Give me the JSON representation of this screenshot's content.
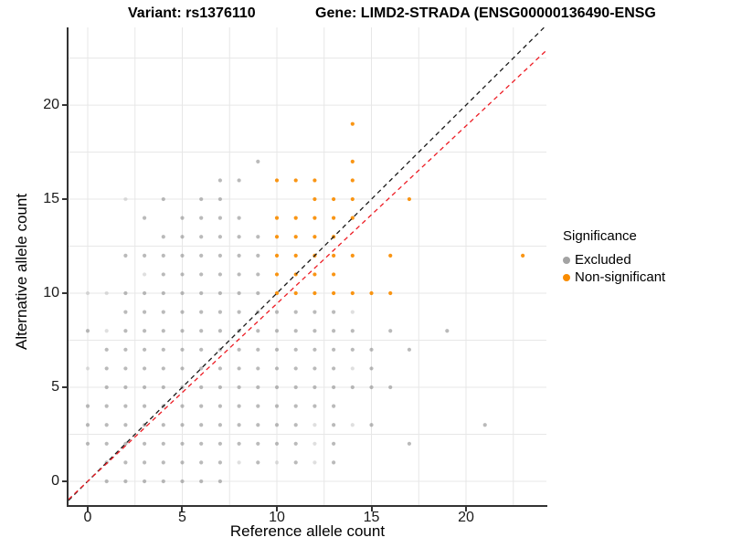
{
  "titles": {
    "variant": "Variant: rs1376110",
    "gene": "Gene: LIMD2-STRADA (ENSG00000136490-ENSG"
  },
  "legend": {
    "title": "Significance",
    "items": [
      {
        "label": "Excluded",
        "color": "#a3a3a3"
      },
      {
        "label": "Non-significant",
        "color": "#f98c00"
      }
    ]
  },
  "colors": {
    "grid": "#e7e7e7",
    "axis": "#333333",
    "gray_point": "#8c8c8c",
    "orange_point": "#f98c00",
    "identity_line": "#1a1a1a",
    "fit_line": "#ed1c24",
    "background": "#ffffff"
  },
  "chart_data": {
    "type": "scatter",
    "title": "Variant: rs1376110 | Gene: LIMD2-STRADA (ENSG00000136490-ENSG...)",
    "xlabel": "Reference allele count",
    "ylabel": "Alternative allele count",
    "xlim": [
      -1.014,
      24.25
    ],
    "ylim": [
      -1.262,
      24.13
    ],
    "x_ticks": [
      0,
      5,
      10,
      15,
      20
    ],
    "y_ticks": [
      0,
      5,
      10,
      15,
      20
    ],
    "minor_grid": [
      2.5,
      7.5,
      12.5,
      17.5,
      22.5
    ],
    "grid": true,
    "legend_position": "right",
    "lines": [
      {
        "name": "identity",
        "dash": true,
        "color": "#1a1a1a",
        "x1": -1.014,
        "y1": -1.014,
        "x2": 24.25,
        "y2": 24.25
      },
      {
        "name": "expected",
        "dash": true,
        "color": "#ed1c24",
        "x1": -1.014,
        "y1": -0.958,
        "x2": 24.25,
        "y2": 22.91
      }
    ],
    "series": [
      {
        "name": "Excluded",
        "color": "#8c8c8c",
        "opacity": 0.6,
        "points": [
          [
            1,
            0
          ],
          [
            2,
            0
          ],
          [
            3,
            0
          ],
          [
            4,
            0
          ],
          [
            5,
            0
          ],
          [
            6,
            0
          ],
          [
            7,
            0
          ],
          [
            1,
            1
          ],
          [
            2,
            1
          ],
          [
            3,
            1
          ],
          [
            4,
            1
          ],
          [
            5,
            1
          ],
          [
            6,
            1
          ],
          [
            7,
            1
          ],
          [
            9,
            1
          ],
          [
            11,
            1
          ],
          [
            13,
            1
          ],
          [
            0,
            2
          ],
          [
            1,
            2
          ],
          [
            2,
            2
          ],
          [
            3,
            2
          ],
          [
            4,
            2
          ],
          [
            5,
            2
          ],
          [
            6,
            2
          ],
          [
            7,
            2
          ],
          [
            8,
            2
          ],
          [
            9,
            2
          ],
          [
            10,
            2
          ],
          [
            11,
            2
          ],
          [
            13,
            2
          ],
          [
            17,
            2
          ],
          [
            0,
            3
          ],
          [
            1,
            3
          ],
          [
            2,
            3
          ],
          [
            3,
            3
          ],
          [
            4,
            3
          ],
          [
            5,
            3
          ],
          [
            6,
            3
          ],
          [
            7,
            3
          ],
          [
            8,
            3
          ],
          [
            9,
            3
          ],
          [
            10,
            3
          ],
          [
            11,
            3
          ],
          [
            13,
            3
          ],
          [
            15,
            3
          ],
          [
            21,
            3
          ],
          [
            0,
            4
          ],
          [
            1,
            4
          ],
          [
            2,
            4
          ],
          [
            3,
            4
          ],
          [
            4,
            4
          ],
          [
            5,
            4
          ],
          [
            6,
            4
          ],
          [
            7,
            4
          ],
          [
            8,
            4
          ],
          [
            9,
            4
          ],
          [
            10,
            4
          ],
          [
            11,
            4
          ],
          [
            12,
            4
          ],
          [
            13,
            4
          ],
          [
            1,
            5
          ],
          [
            2,
            5
          ],
          [
            3,
            5
          ],
          [
            4,
            5
          ],
          [
            5,
            5
          ],
          [
            6,
            5
          ],
          [
            7,
            5
          ],
          [
            8,
            5
          ],
          [
            9,
            5
          ],
          [
            10,
            5
          ],
          [
            11,
            5
          ],
          [
            12,
            5
          ],
          [
            13,
            5
          ],
          [
            14,
            5
          ],
          [
            15,
            5
          ],
          [
            16,
            5
          ],
          [
            1,
            6
          ],
          [
            2,
            6
          ],
          [
            3,
            6
          ],
          [
            4,
            6
          ],
          [
            5,
            6
          ],
          [
            6,
            6
          ],
          [
            7,
            6
          ],
          [
            8,
            6
          ],
          [
            9,
            6
          ],
          [
            10,
            6
          ],
          [
            11,
            6
          ],
          [
            12,
            6
          ],
          [
            13,
            6
          ],
          [
            15,
            6
          ],
          [
            1,
            7
          ],
          [
            2,
            7
          ],
          [
            3,
            7
          ],
          [
            4,
            7
          ],
          [
            5,
            7
          ],
          [
            6,
            7
          ],
          [
            7,
            7
          ],
          [
            8,
            7
          ],
          [
            9,
            7
          ],
          [
            10,
            7
          ],
          [
            11,
            7
          ],
          [
            12,
            7
          ],
          [
            13,
            7
          ],
          [
            14,
            7
          ],
          [
            15,
            7
          ],
          [
            17,
            7
          ],
          [
            0,
            8
          ],
          [
            2,
            8
          ],
          [
            3,
            8
          ],
          [
            4,
            8
          ],
          [
            5,
            8
          ],
          [
            6,
            8
          ],
          [
            7,
            8
          ],
          [
            8,
            8
          ],
          [
            9,
            8
          ],
          [
            10,
            8
          ],
          [
            11,
            8
          ],
          [
            12,
            8
          ],
          [
            13,
            8
          ],
          [
            14,
            8
          ],
          [
            16,
            8
          ],
          [
            19,
            8
          ],
          [
            2,
            9
          ],
          [
            3,
            9
          ],
          [
            4,
            9
          ],
          [
            5,
            9
          ],
          [
            6,
            9
          ],
          [
            7,
            9
          ],
          [
            8,
            9
          ],
          [
            9,
            9
          ],
          [
            10,
            9
          ],
          [
            11,
            9
          ],
          [
            12,
            9
          ],
          [
            13,
            9
          ],
          [
            2,
            10
          ],
          [
            3,
            10
          ],
          [
            4,
            10
          ],
          [
            5,
            10
          ],
          [
            6,
            10
          ],
          [
            7,
            10
          ],
          [
            8,
            10
          ],
          [
            9,
            10
          ],
          [
            4,
            11
          ],
          [
            5,
            11
          ],
          [
            6,
            11
          ],
          [
            7,
            11
          ],
          [
            8,
            11
          ],
          [
            9,
            11
          ],
          [
            2,
            12
          ],
          [
            3,
            12
          ],
          [
            4,
            12
          ],
          [
            5,
            12
          ],
          [
            6,
            12
          ],
          [
            7,
            12
          ],
          [
            8,
            12
          ],
          [
            9,
            12
          ],
          [
            4,
            13
          ],
          [
            5,
            13
          ],
          [
            6,
            13
          ],
          [
            7,
            13
          ],
          [
            8,
            13
          ],
          [
            9,
            13
          ],
          [
            3,
            14
          ],
          [
            5,
            14
          ],
          [
            6,
            14
          ],
          [
            7,
            14
          ],
          [
            8,
            14
          ],
          [
            4,
            15
          ],
          [
            6,
            15
          ],
          [
            7,
            15
          ],
          [
            7,
            16
          ],
          [
            8,
            16
          ],
          [
            9,
            17
          ]
        ]
      },
      {
        "name": "Excluded-faint",
        "color": "#8c8c8c",
        "opacity": 0.28,
        "points": [
          [
            8,
            1
          ],
          [
            10,
            1
          ],
          [
            12,
            1
          ],
          [
            12,
            2
          ],
          [
            12,
            3
          ],
          [
            14,
            3
          ],
          [
            0,
            6
          ],
          [
            14,
            6
          ],
          [
            1,
            8
          ],
          [
            14,
            9
          ],
          [
            0,
            10
          ],
          [
            1,
            10
          ],
          [
            3,
            11
          ],
          [
            2,
            15
          ]
        ]
      },
      {
        "name": "Non-significant",
        "color": "#f98c00",
        "opacity": 0.92,
        "points": [
          [
            10,
            10
          ],
          [
            11,
            10
          ],
          [
            12,
            10
          ],
          [
            13,
            10
          ],
          [
            14,
            10
          ],
          [
            15,
            10
          ],
          [
            16,
            10
          ],
          [
            10,
            11
          ],
          [
            11,
            11
          ],
          [
            12,
            11
          ],
          [
            13,
            11
          ],
          [
            10,
            12
          ],
          [
            11,
            12
          ],
          [
            12,
            12
          ],
          [
            13,
            12
          ],
          [
            14,
            12
          ],
          [
            16,
            12
          ],
          [
            23,
            12
          ],
          [
            10,
            13
          ],
          [
            11,
            13
          ],
          [
            12,
            13
          ],
          [
            13,
            13
          ],
          [
            10,
            14
          ],
          [
            11,
            14
          ],
          [
            12,
            14
          ],
          [
            13,
            14
          ],
          [
            14,
            14
          ],
          [
            12,
            15
          ],
          [
            13,
            15
          ],
          [
            14,
            15
          ],
          [
            17,
            15
          ],
          [
            10,
            16
          ],
          [
            11,
            16
          ],
          [
            12,
            16
          ],
          [
            14,
            16
          ],
          [
            14,
            17
          ],
          [
            14,
            19
          ]
        ]
      }
    ]
  }
}
